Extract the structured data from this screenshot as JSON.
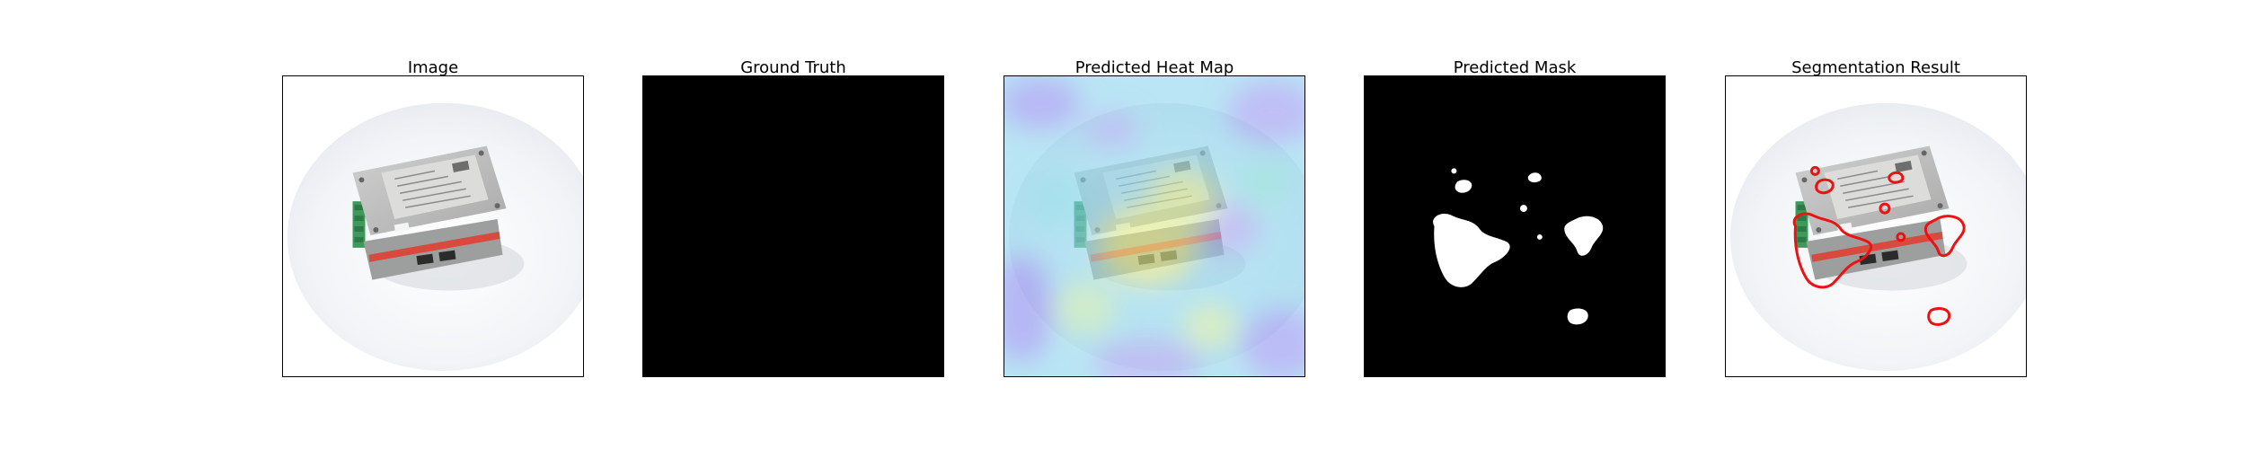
{
  "figure": {
    "panels": [
      {
        "id": "image",
        "title": "Image"
      },
      {
        "id": "ground-truth",
        "title": "Ground Truth"
      },
      {
        "id": "heatmap",
        "title": "Predicted Heat Map"
      },
      {
        "id": "mask",
        "title": "Predicted Mask"
      },
      {
        "id": "segmentation",
        "title": "Segmentation Result"
      }
    ]
  },
  "colors": {
    "background": "#ffffff",
    "mask_bg": "#000000",
    "mask_fg": "#ffffff",
    "contour": "#ee1111",
    "device_body": "#b9bbbb",
    "terminal_green": "#3d9a5a",
    "stripe_red": "#d84a3e"
  }
}
